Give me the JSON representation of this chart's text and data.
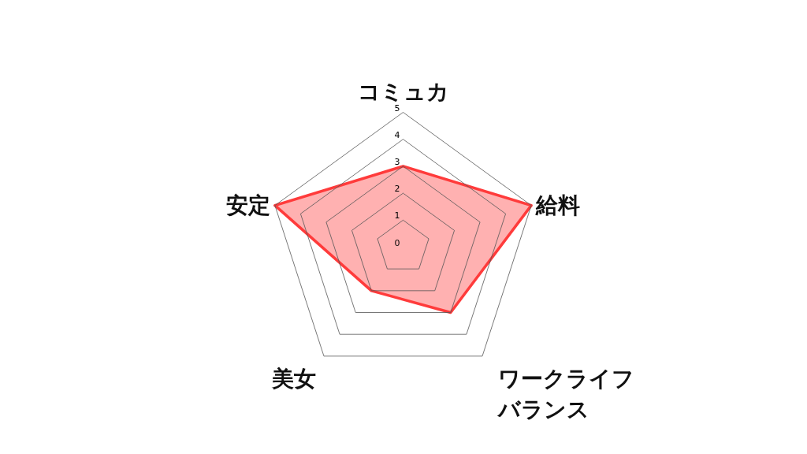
{
  "chart_data": {
    "type": "radar",
    "categories": [
      "コミュカ",
      "給料",
      "ワークライフバランス",
      "美女",
      "安定"
    ],
    "series": [
      {
        "color": "#ff3b3b",
        "values": [
          3,
          5,
          3,
          2,
          5
        ]
      }
    ],
    "ylim": [
      0,
      5
    ],
    "yticks": [
      0,
      1,
      2,
      3,
      4,
      5
    ],
    "grid": true
  }
}
